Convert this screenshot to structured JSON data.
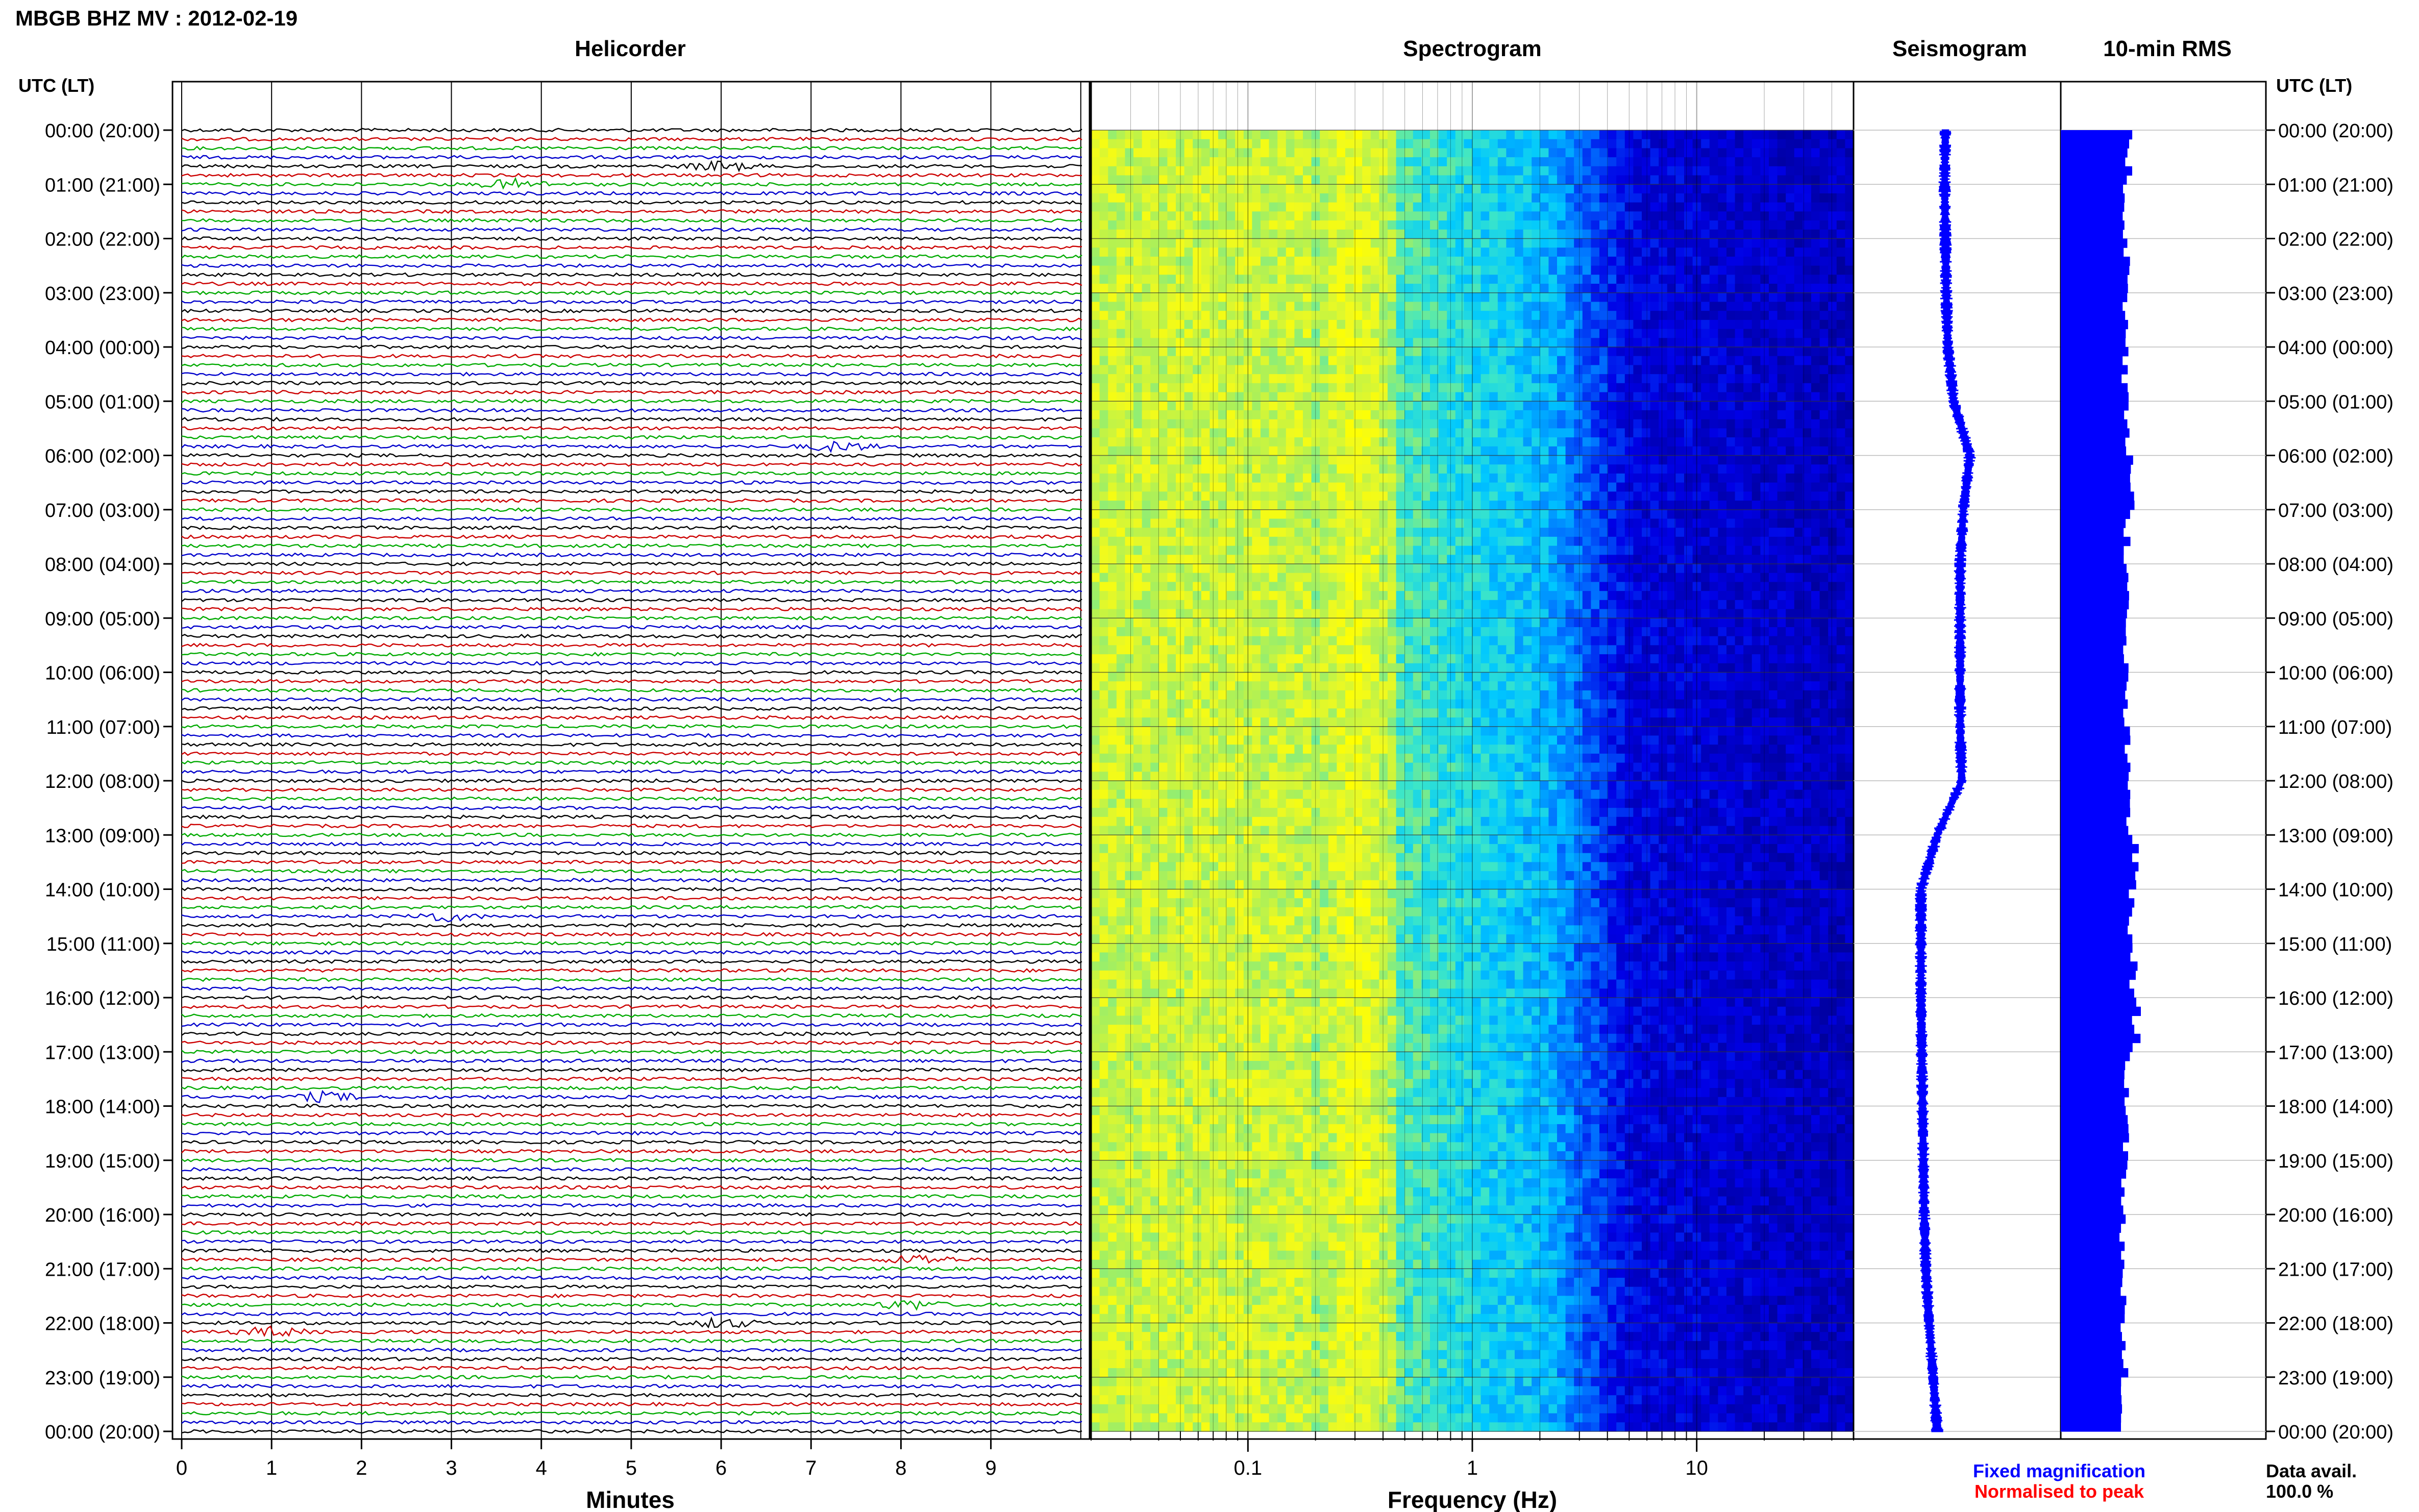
{
  "header": {
    "title": "MBGB BHZ MV : 2012-02-19"
  },
  "panels": {
    "helicorder": "Helicorder",
    "spectrogram": "Spectrogram",
    "seismogram": "Seismogram",
    "rms": "10-min RMS"
  },
  "axis_titles": {
    "left": "UTC (LT)",
    "right": "UTC (LT)",
    "helicorder_x": "Minutes",
    "spectrogram_x": "Frequency (Hz)"
  },
  "legend": {
    "fixed": "Fixed magnification",
    "normalised": "Normalised to peak",
    "fixed_color": "#0000ff",
    "normalised_color": "#ff0000"
  },
  "data_availability": {
    "label": "Data avail.",
    "value": "100.0 %"
  },
  "colors": {
    "trace_cycle": [
      "#000000",
      "#cc0000",
      "#00aa00",
      "#0000cc"
    ],
    "seismogram": "#0000ff",
    "rms": "#0000ff",
    "spectrogram_low": "#0000a0",
    "spectrogram_high": "#ffff00"
  },
  "chart_data": [
    {
      "type": "line",
      "name": "helicorder",
      "xlabel": "Minutes",
      "x_ticks": [
        "0",
        "1",
        "2",
        "3",
        "4",
        "5",
        "6",
        "7",
        "8",
        "9"
      ],
      "xlim": [
        0,
        10
      ],
      "lines_per_hour": 6,
      "hours": 24,
      "y_tick_labels": [
        "00:00 (20:00)",
        "01:00 (21:00)",
        "02:00 (22:00)",
        "03:00 (23:00)",
        "04:00 (00:00)",
        "05:00 (01:00)",
        "06:00 (02:00)",
        "07:00 (03:00)",
        "08:00 (04:00)",
        "09:00 (05:00)",
        "10:00 (06:00)",
        "11:00 (07:00)",
        "12:00 (08:00)",
        "13:00 (09:00)",
        "14:00 (10:00)",
        "15:00 (11:00)",
        "16:00 (12:00)",
        "17:00 (13:00)",
        "18:00 (14:00)",
        "19:00 (15:00)",
        "20:00 (16:00)",
        "21:00 (17:00)",
        "22:00 (18:00)",
        "23:00 (19:00)",
        "00:00 (20:00)"
      ],
      "events": [
        {
          "line": 4,
          "minute": 6.0
        },
        {
          "line": 6,
          "minute": 3.7
        },
        {
          "line": 35,
          "minute": 7.3
        },
        {
          "line": 87,
          "minute": 2.9
        },
        {
          "line": 107,
          "minute": 1.6
        },
        {
          "line": 125,
          "minute": 8.2
        },
        {
          "line": 130,
          "minute": 8.1
        },
        {
          "line": 132,
          "minute": 6.0
        },
        {
          "line": 133,
          "minute": 1.0
        }
      ]
    },
    {
      "type": "heatmap",
      "name": "spectrogram",
      "xlabel": "Frequency (Hz)",
      "x_scale": "log",
      "xlim": [
        0.02,
        50
      ],
      "x_tick_labels": [
        "0.1",
        "1",
        "10"
      ],
      "x_tick_values": [
        0.1,
        1,
        10
      ]
    },
    {
      "type": "line",
      "name": "seismogram",
      "hours": [
        0,
        1,
        2,
        3,
        4,
        5,
        6,
        7,
        8,
        9,
        10,
        11,
        12,
        13,
        14,
        15,
        16,
        17,
        18,
        19,
        20,
        21,
        22,
        23,
        24
      ],
      "offset": [
        0.5,
        0.49,
        0.5,
        0.51,
        0.53,
        0.6,
        0.8,
        0.72,
        0.68,
        0.68,
        0.68,
        0.68,
        0.7,
        0.4,
        0.2,
        0.2,
        0.2,
        0.21,
        0.22,
        0.23,
        0.24,
        0.26,
        0.3,
        0.35,
        0.4
      ]
    },
    {
      "type": "bar",
      "name": "rms",
      "hours": [
        0,
        1,
        2,
        3,
        4,
        5,
        6,
        7,
        8,
        9,
        10,
        11,
        12,
        13,
        14,
        15,
        16,
        17,
        18,
        19,
        20,
        21,
        22,
        23
      ],
      "values": [
        0.9,
        0.85,
        0.88,
        0.86,
        0.85,
        0.87,
        0.95,
        0.88,
        0.86,
        0.85,
        0.86,
        0.87,
        0.9,
        0.98,
        0.92,
        0.96,
        1.0,
        0.88,
        0.85,
        0.84,
        0.82,
        0.83,
        0.84,
        0.8
      ]
    }
  ]
}
